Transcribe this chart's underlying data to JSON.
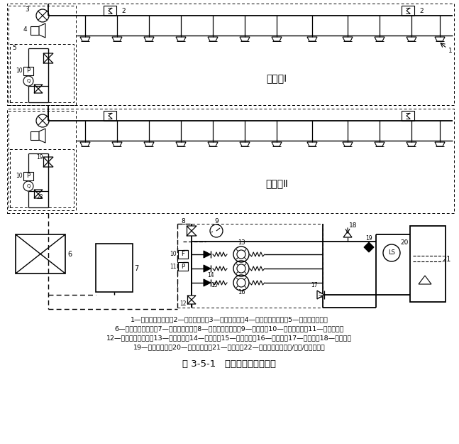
{
  "title": "图 3-5-1   开式细水雾灭火系统",
  "caption_lines": [
    "1—开式细水雾喷头；2—火灾探测器；3—喷雾指示灯；4—火灾声光报警器；5—分区控制阀组；",
    "6—火灾报警控制器；7—消防泵控制柜；8—控制阀（常开）；9—压力表；10—水流传感器；11—压力开关；",
    "12—泄水阀（常闭）；13—消防水泵；14—止回阀；15—柔性接头；16—稳压泵；17—过滤器；18—安全阀；",
    "19—泄放试验阀；20—液位传感器；21—储水箱；22—分区控制阀（电磁/气动/电动阀）。"
  ],
  "zone1_label": "防护区Ⅰ",
  "zone2_label": "防护区Ⅱ",
  "fig_title": "图 3-5-1   开式细水雾灭火系统"
}
